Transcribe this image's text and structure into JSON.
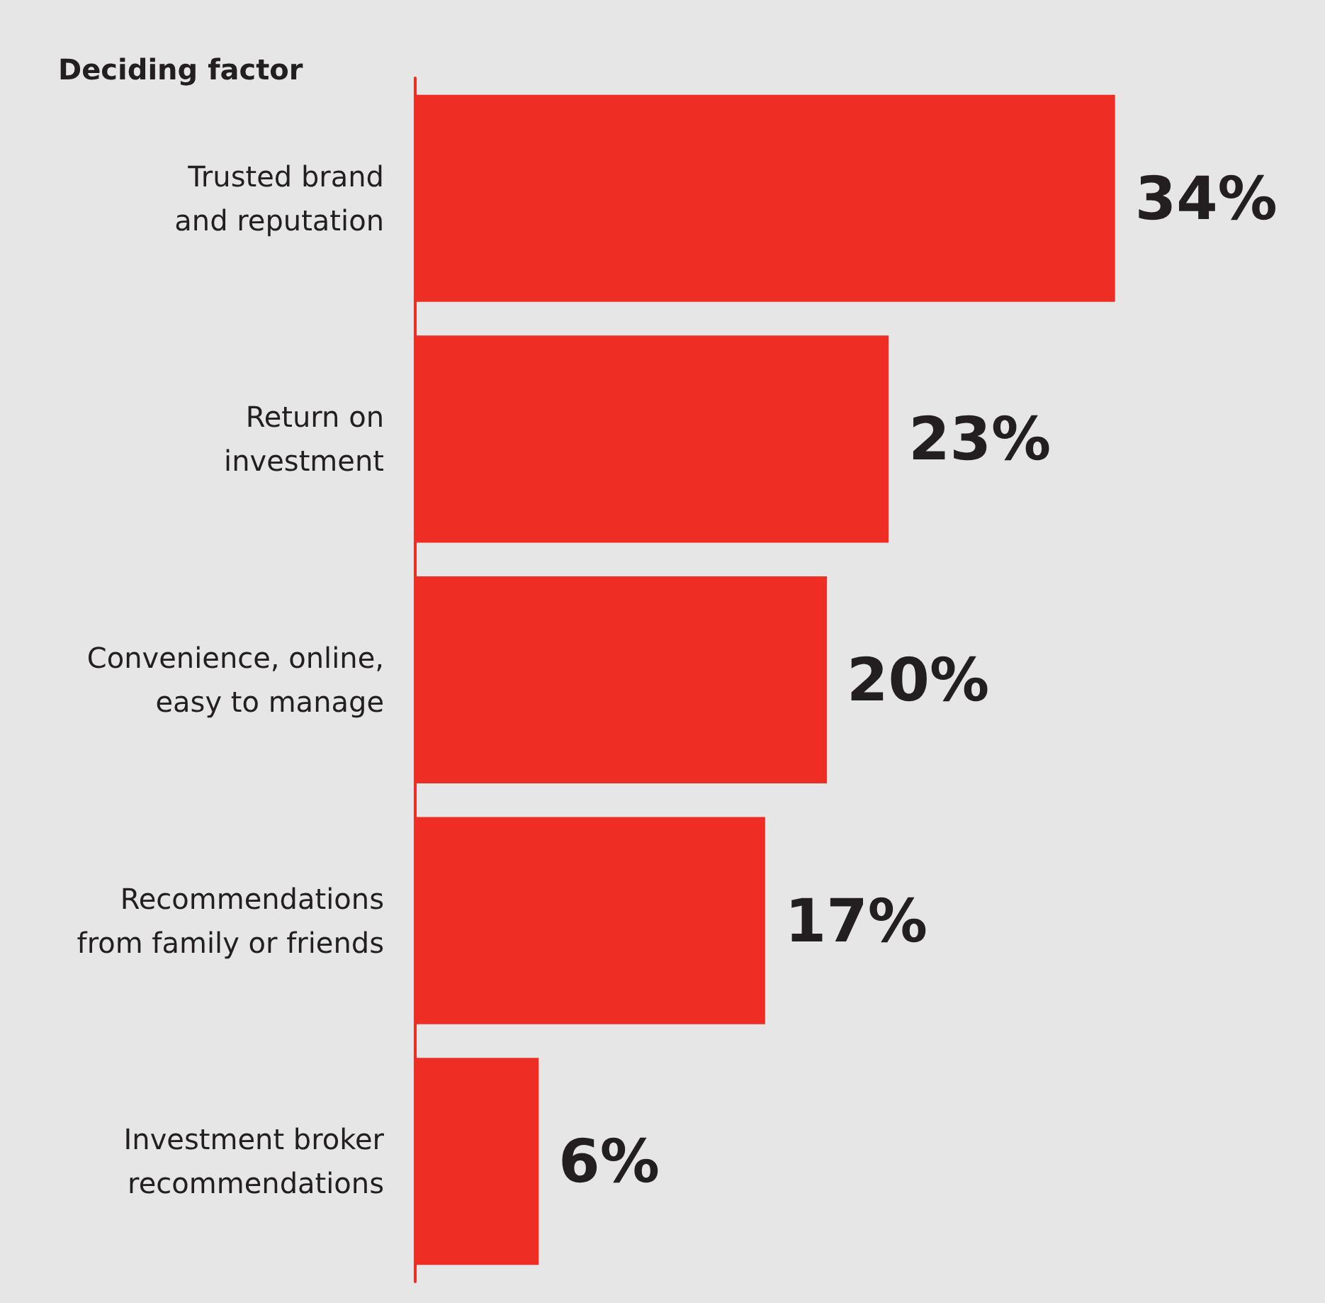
{
  "chart_data": {
    "type": "bar",
    "orientation": "horizontal",
    "title": "Deciding factor",
    "categories": [
      "Trusted brand\nand reputation",
      "Return on\ninvestment",
      "Convenience, online,\neasy to manage",
      "Recommendations\nfrom family or friends",
      "Investment broker\nrecommendations"
    ],
    "values": [
      34,
      23,
      20,
      17,
      6
    ],
    "value_labels": [
      "34%",
      "23%",
      "20%",
      "17%",
      "6%"
    ],
    "color": "#ee2e24",
    "tick_labels": "y"
  }
}
